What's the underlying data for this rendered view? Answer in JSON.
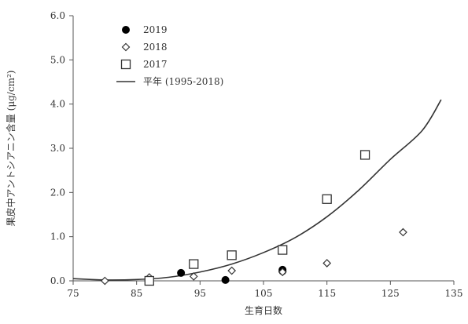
{
  "chart_data": {
    "type": "scatter",
    "title": "",
    "xlabel": "生育日数",
    "ylabel": "果皮中アントシアニン含量 (μg/cm²)",
    "xlim": [
      75,
      135
    ],
    "ylim": [
      0,
      6
    ],
    "x_ticks": [
      "75",
      "85",
      "95",
      "105",
      "115",
      "125",
      "135"
    ],
    "y_ticks": [
      "0.0",
      "1.0",
      "2.0",
      "3.0",
      "4.0",
      "5.0",
      "6.0"
    ],
    "grid": false,
    "legend_position": "top-left",
    "series": [
      {
        "name": "2019",
        "marker": "filled-circle",
        "color": "#000000",
        "points": [
          [
            87,
            0.0
          ],
          [
            92,
            0.18
          ],
          [
            99,
            0.02
          ],
          [
            108,
            0.22
          ],
          [
            108,
            0.25
          ]
        ]
      },
      {
        "name": "2018",
        "marker": "open-diamond",
        "color": "#333333",
        "points": [
          [
            80,
            0.0
          ],
          [
            87,
            0.08
          ],
          [
            94,
            0.1
          ],
          [
            100,
            0.23
          ],
          [
            108,
            0.2
          ],
          [
            115,
            0.4
          ],
          [
            127,
            1.1
          ]
        ]
      },
      {
        "name": "2017",
        "marker": "open-square",
        "color": "#333333",
        "points": [
          [
            87,
            0.0
          ],
          [
            94,
            0.38
          ],
          [
            100,
            0.58
          ],
          [
            108,
            0.7
          ],
          [
            115,
            1.85
          ],
          [
            121,
            2.85
          ]
        ]
      },
      {
        "name": "平年 (1995-2018)",
        "marker": "line",
        "color": "#333333",
        "points": [
          [
            75,
            0.05
          ],
          [
            80,
            0.02
          ],
          [
            85,
            0.03
          ],
          [
            90,
            0.08
          ],
          [
            95,
            0.2
          ],
          [
            100,
            0.38
          ],
          [
            105,
            0.64
          ],
          [
            110,
            0.98
          ],
          [
            115,
            1.45
          ],
          [
            120,
            2.05
          ],
          [
            125,
            2.75
          ],
          [
            130,
            3.4
          ],
          [
            133,
            4.1
          ]
        ]
      }
    ]
  }
}
